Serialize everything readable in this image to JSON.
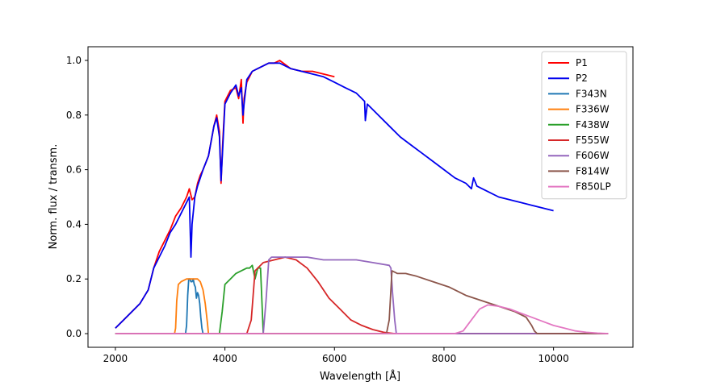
{
  "chart_data": {
    "type": "line",
    "title": "",
    "xlabel": "Wavelength [Å]",
    "ylabel": "Norm. flux / transm.",
    "xlim": [
      1500,
      11450
    ],
    "ylim": [
      -0.05,
      1.05
    ],
    "x_ticks": [
      2000,
      4000,
      6000,
      8000,
      10000
    ],
    "x_tick_labels": [
      "2000",
      "4000",
      "6000",
      "8000",
      "10000"
    ],
    "y_ticks": [
      0.0,
      0.2,
      0.4,
      0.6,
      0.8,
      1.0
    ],
    "y_tick_labels": [
      "0.0",
      "0.2",
      "0.4",
      "0.6",
      "0.8",
      "1.0"
    ],
    "grid": false,
    "legend_position": "top-right",
    "series": [
      {
        "name": "P1",
        "color": "#ff0000",
        "x": [
          2000,
          2150,
          2300,
          2450,
          2600,
          2700,
          2800,
          2900,
          3000,
          3100,
          3200,
          3300,
          3350,
          3400,
          3450,
          3500,
          3550,
          3600,
          3700,
          3800,
          3850,
          3900,
          3930,
          3960,
          4000,
          4100,
          4200,
          4250,
          4300,
          4330,
          4350,
          4400,
          4500,
          4600,
          4700,
          4800,
          4900,
          5000,
          5200,
          5400,
          5600,
          5800,
          6000
        ],
        "y": [
          0.02,
          0.05,
          0.08,
          0.11,
          0.16,
          0.24,
          0.3,
          0.34,
          0.38,
          0.43,
          0.46,
          0.5,
          0.53,
          0.49,
          0.5,
          0.55,
          0.58,
          0.6,
          0.65,
          0.76,
          0.8,
          0.74,
          0.55,
          0.7,
          0.85,
          0.89,
          0.9,
          0.86,
          0.93,
          0.77,
          0.86,
          0.92,
          0.96,
          0.97,
          0.98,
          0.99,
          0.99,
          1.0,
          0.97,
          0.96,
          0.96,
          0.95,
          0.94
        ]
      },
      {
        "name": "P2",
        "color": "#0000ee",
        "x": [
          2000,
          2150,
          2300,
          2450,
          2600,
          2700,
          2800,
          2900,
          3000,
          3100,
          3200,
          3300,
          3350,
          3380,
          3400,
          3450,
          3500,
          3550,
          3600,
          3700,
          3800,
          3850,
          3900,
          3930,
          3960,
          4000,
          4100,
          4200,
          4250,
          4300,
          4330,
          4350,
          4400,
          4500,
          4600,
          4700,
          4800,
          4900,
          5000,
          5200,
          5400,
          5600,
          5800,
          6000,
          6200,
          6400,
          6550,
          6563,
          6600,
          6800,
          7000,
          7200,
          7400,
          7600,
          7800,
          8000,
          8200,
          8400,
          8500,
          8540,
          8600,
          8700,
          8800,
          9000,
          9200,
          9400,
          9600,
          9800,
          10000
        ],
        "y": [
          0.02,
          0.05,
          0.08,
          0.11,
          0.16,
          0.24,
          0.28,
          0.32,
          0.37,
          0.4,
          0.44,
          0.48,
          0.5,
          0.28,
          0.4,
          0.5,
          0.54,
          0.57,
          0.6,
          0.65,
          0.76,
          0.79,
          0.72,
          0.56,
          0.68,
          0.84,
          0.88,
          0.91,
          0.87,
          0.9,
          0.8,
          0.84,
          0.93,
          0.96,
          0.97,
          0.98,
          0.99,
          0.99,
          0.99,
          0.97,
          0.96,
          0.95,
          0.94,
          0.92,
          0.9,
          0.88,
          0.85,
          0.78,
          0.84,
          0.8,
          0.76,
          0.72,
          0.69,
          0.66,
          0.63,
          0.6,
          0.57,
          0.55,
          0.53,
          0.57,
          0.54,
          0.53,
          0.52,
          0.5,
          0.49,
          0.48,
          0.47,
          0.46,
          0.45
        ]
      },
      {
        "name": "F343N",
        "color": "#1f77b4",
        "x": [
          2000,
          3280,
          3300,
          3320,
          3340,
          3360,
          3380,
          3400,
          3420,
          3440,
          3460,
          3480,
          3500,
          3520,
          3540,
          3560,
          3580,
          3600,
          11000
        ],
        "y": [
          0,
          0,
          0.03,
          0.14,
          0.2,
          0.2,
          0.19,
          0.19,
          0.2,
          0.18,
          0.17,
          0.13,
          0.15,
          0.14,
          0.11,
          0.06,
          0.02,
          0,
          0
        ]
      },
      {
        "name": "F336W",
        "color": "#ff7f0e",
        "x": [
          2000,
          3080,
          3100,
          3120,
          3150,
          3200,
          3300,
          3400,
          3500,
          3550,
          3600,
          3640,
          3680,
          3700,
          11000
        ],
        "y": [
          0,
          0,
          0.02,
          0.12,
          0.18,
          0.19,
          0.2,
          0.2,
          0.2,
          0.19,
          0.16,
          0.11,
          0.04,
          0,
          0
        ]
      },
      {
        "name": "F438W",
        "color": "#2ca02c",
        "x": [
          2000,
          3900,
          3950,
          4000,
          4100,
          4200,
          4300,
          4400,
          4450,
          4500,
          4550,
          4600,
          4650,
          4700,
          11000
        ],
        "y": [
          0,
          0,
          0.08,
          0.18,
          0.2,
          0.22,
          0.23,
          0.24,
          0.24,
          0.25,
          0.2,
          0.24,
          0.24,
          0,
          0
        ]
      },
      {
        "name": "F555W",
        "color": "#d62728",
        "x": [
          2000,
          4400,
          4480,
          4550,
          4700,
          4900,
          5100,
          5300,
          5500,
          5700,
          5900,
          6100,
          6300,
          6500,
          6700,
          6900,
          7100,
          11000
        ],
        "y": [
          0,
          0,
          0.05,
          0.23,
          0.26,
          0.27,
          0.28,
          0.27,
          0.24,
          0.19,
          0.13,
          0.09,
          0.05,
          0.03,
          0.015,
          0.005,
          0,
          0
        ]
      },
      {
        "name": "F606W",
        "color": "#9467bd",
        "x": [
          2000,
          4700,
          4750,
          4800,
          4850,
          5000,
          5200,
          5500,
          5800,
          6100,
          6400,
          6700,
          7000,
          7030,
          7060,
          7100,
          7130,
          11000
        ],
        "y": [
          0,
          0,
          0.12,
          0.27,
          0.28,
          0.28,
          0.28,
          0.28,
          0.27,
          0.27,
          0.27,
          0.26,
          0.25,
          0.24,
          0.15,
          0.05,
          0,
          0
        ]
      },
      {
        "name": "F814W",
        "color": "#8c564b",
        "x": [
          2000,
          6950,
          7000,
          7050,
          7150,
          7300,
          7500,
          7800,
          8100,
          8400,
          8700,
          9000,
          9300,
          9500,
          9600,
          9650,
          9700,
          11000
        ],
        "y": [
          0,
          0,
          0.05,
          0.23,
          0.22,
          0.22,
          0.21,
          0.19,
          0.17,
          0.14,
          0.12,
          0.1,
          0.08,
          0.06,
          0.03,
          0.01,
          0,
          0
        ]
      },
      {
        "name": "F850LP",
        "color": "#e377c2",
        "x": [
          2000,
          8200,
          8350,
          8500,
          8650,
          8800,
          9000,
          9200,
          9400,
          9600,
          9800,
          10000,
          10200,
          10400,
          10600,
          10800,
          11000
        ],
        "y": [
          0,
          0,
          0.01,
          0.05,
          0.09,
          0.105,
          0.1,
          0.09,
          0.075,
          0.06,
          0.045,
          0.03,
          0.02,
          0.01,
          0.005,
          0.002,
          0
        ]
      }
    ]
  }
}
